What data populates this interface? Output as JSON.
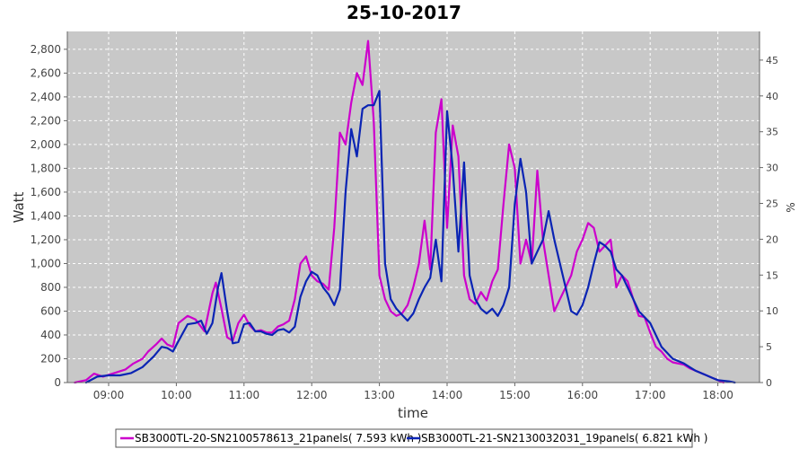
{
  "chart_data": {
    "type": "line",
    "title": "25-10-2017",
    "xlabel": "time",
    "ylabel": "Watt",
    "y2label": "%",
    "x_ticks": [
      "09:00",
      "10:00",
      "11:00",
      "12:00",
      "13:00",
      "14:00",
      "15:00",
      "16:00",
      "17:00",
      "18:00"
    ],
    "ylim": [
      0,
      2950
    ],
    "y_ticks": [
      "0",
      "200",
      "400",
      "600",
      "800",
      "1,000",
      "1,200",
      "1,400",
      "1,600",
      "1,800",
      "2,000",
      "2,200",
      "2,400",
      "2,600",
      "2,800"
    ],
    "y2lim": [
      0,
      49
    ],
    "y2_ticks": [
      "0",
      "5",
      "10",
      "15",
      "20",
      "25",
      "30",
      "35",
      "40",
      "45"
    ],
    "grid": true,
    "legend_position": "bottom",
    "colors": {
      "plot_bg": "#c8c8c8",
      "grid": "#ffffff"
    },
    "series": [
      {
        "name": "SB3000TL-20-SN2100578613_21panels( 7.593 kWh )",
        "color": "#cc00cc",
        "points": [
          [
            "08:30",
            0
          ],
          [
            "08:40",
            20
          ],
          [
            "08:47",
            75
          ],
          [
            "08:55",
            50
          ],
          [
            "09:05",
            80
          ],
          [
            "09:15",
            110
          ],
          [
            "09:22",
            160
          ],
          [
            "09:30",
            200
          ],
          [
            "09:35",
            260
          ],
          [
            "09:42",
            320
          ],
          [
            "09:47",
            370
          ],
          [
            "09:52",
            320
          ],
          [
            "09:57",
            300
          ],
          [
            "10:02",
            500
          ],
          [
            "10:10",
            560
          ],
          [
            "10:17",
            530
          ],
          [
            "10:25",
            430
          ],
          [
            "10:32",
            750
          ],
          [
            "10:35",
            840
          ],
          [
            "10:40",
            620
          ],
          [
            "10:45",
            380
          ],
          [
            "10:50",
            350
          ],
          [
            "10:55",
            500
          ],
          [
            "11:00",
            570
          ],
          [
            "11:05",
            480
          ],
          [
            "11:10",
            430
          ],
          [
            "11:15",
            440
          ],
          [
            "11:20",
            420
          ],
          [
            "11:25",
            420
          ],
          [
            "11:30",
            470
          ],
          [
            "11:35",
            490
          ],
          [
            "11:40",
            520
          ],
          [
            "11:45",
            700
          ],
          [
            "11:50",
            1000
          ],
          [
            "11:55",
            1060
          ],
          [
            "12:00",
            900
          ],
          [
            "12:05",
            850
          ],
          [
            "12:10",
            830
          ],
          [
            "12:15",
            780
          ],
          [
            "12:20",
            1300
          ],
          [
            "12:25",
            2100
          ],
          [
            "12:30",
            2000
          ],
          [
            "12:35",
            2350
          ],
          [
            "12:40",
            2600
          ],
          [
            "12:45",
            2500
          ],
          [
            "12:50",
            2870
          ],
          [
            "12:55",
            2200
          ],
          [
            "13:00",
            900
          ],
          [
            "13:05",
            700
          ],
          [
            "13:10",
            600
          ],
          [
            "13:15",
            560
          ],
          [
            "13:20",
            580
          ],
          [
            "13:25",
            650
          ],
          [
            "13:30",
            800
          ],
          [
            "13:35",
            1000
          ],
          [
            "13:40",
            1360
          ],
          [
            "13:45",
            950
          ],
          [
            "13:50",
            2100
          ],
          [
            "13:55",
            2380
          ],
          [
            "14:00",
            1300
          ],
          [
            "14:05",
            2160
          ],
          [
            "14:10",
            1900
          ],
          [
            "14:15",
            900
          ],
          [
            "14:20",
            700
          ],
          [
            "14:25",
            660
          ],
          [
            "14:30",
            760
          ],
          [
            "14:35",
            690
          ],
          [
            "14:40",
            850
          ],
          [
            "14:45",
            950
          ],
          [
            "14:50",
            1500
          ],
          [
            "14:55",
            2000
          ],
          [
            "15:00",
            1800
          ],
          [
            "15:05",
            1000
          ],
          [
            "15:10",
            1200
          ],
          [
            "15:15",
            1000
          ],
          [
            "15:20",
            1780
          ],
          [
            "15:25",
            1200
          ],
          [
            "15:30",
            900
          ],
          [
            "15:35",
            600
          ],
          [
            "15:40",
            700
          ],
          [
            "15:45",
            800
          ],
          [
            "15:50",
            900
          ],
          [
            "15:55",
            1100
          ],
          [
            "16:00",
            1200
          ],
          [
            "16:05",
            1340
          ],
          [
            "16:10",
            1300
          ],
          [
            "16:15",
            1100
          ],
          [
            "16:20",
            1150
          ],
          [
            "16:25",
            1200
          ],
          [
            "16:30",
            800
          ],
          [
            "16:35",
            900
          ],
          [
            "16:40",
            850
          ],
          [
            "16:45",
            700
          ],
          [
            "16:50",
            560
          ],
          [
            "16:55",
            550
          ],
          [
            "17:00",
            420
          ],
          [
            "17:05",
            300
          ],
          [
            "17:10",
            260
          ],
          [
            "17:15",
            200
          ],
          [
            "17:20",
            170
          ],
          [
            "17:25",
            160
          ],
          [
            "17:30",
            150
          ],
          [
            "17:35",
            120
          ],
          [
            "17:40",
            100
          ],
          [
            "17:45",
            80
          ],
          [
            "17:50",
            60
          ],
          [
            "17:55",
            40
          ],
          [
            "18:00",
            20
          ],
          [
            "18:05",
            0
          ]
        ]
      },
      {
        "name": "SB3000TL-21-SN2130032031_19panels( 6.821 kWh )",
        "color": "#0a24b4",
        "points": [
          [
            "08:40",
            0
          ],
          [
            "08:50",
            50
          ],
          [
            "09:00",
            60
          ],
          [
            "09:10",
            60
          ],
          [
            "09:20",
            80
          ],
          [
            "09:30",
            130
          ],
          [
            "09:40",
            220
          ],
          [
            "09:47",
            300
          ],
          [
            "09:52",
            290
          ],
          [
            "09:57",
            260
          ],
          [
            "10:02",
            350
          ],
          [
            "10:10",
            490
          ],
          [
            "10:17",
            500
          ],
          [
            "10:22",
            520
          ],
          [
            "10:27",
            410
          ],
          [
            "10:32",
            500
          ],
          [
            "10:37",
            800
          ],
          [
            "10:40",
            920
          ],
          [
            "10:45",
            600
          ],
          [
            "10:50",
            330
          ],
          [
            "10:55",
            340
          ],
          [
            "11:00",
            490
          ],
          [
            "11:05",
            500
          ],
          [
            "11:10",
            430
          ],
          [
            "11:15",
            430
          ],
          [
            "11:20",
            410
          ],
          [
            "11:25",
            400
          ],
          [
            "11:30",
            440
          ],
          [
            "11:35",
            450
          ],
          [
            "11:40",
            420
          ],
          [
            "11:45",
            470
          ],
          [
            "11:50",
            720
          ],
          [
            "11:55",
            850
          ],
          [
            "12:00",
            930
          ],
          [
            "12:05",
            900
          ],
          [
            "12:10",
            800
          ],
          [
            "12:15",
            740
          ],
          [
            "12:20",
            650
          ],
          [
            "12:25",
            780
          ],
          [
            "12:30",
            1600
          ],
          [
            "12:35",
            2130
          ],
          [
            "12:40",
            1900
          ],
          [
            "12:45",
            2300
          ],
          [
            "12:50",
            2330
          ],
          [
            "12:55",
            2330
          ],
          [
            "13:00",
            2450
          ],
          [
            "13:05",
            1000
          ],
          [
            "13:10",
            700
          ],
          [
            "13:15",
            620
          ],
          [
            "13:20",
            570
          ],
          [
            "13:25",
            520
          ],
          [
            "13:30",
            580
          ],
          [
            "13:35",
            700
          ],
          [
            "13:40",
            800
          ],
          [
            "13:45",
            880
          ],
          [
            "13:50",
            1200
          ],
          [
            "13:55",
            850
          ],
          [
            "14:00",
            2280
          ],
          [
            "14:05",
            1800
          ],
          [
            "14:10",
            1100
          ],
          [
            "14:15",
            1850
          ],
          [
            "14:20",
            900
          ],
          [
            "14:25",
            700
          ],
          [
            "14:30",
            620
          ],
          [
            "14:35",
            580
          ],
          [
            "14:40",
            620
          ],
          [
            "14:45",
            560
          ],
          [
            "14:50",
            650
          ],
          [
            "14:55",
            800
          ],
          [
            "15:00",
            1500
          ],
          [
            "15:05",
            1880
          ],
          [
            "15:10",
            1600
          ],
          [
            "15:15",
            1000
          ],
          [
            "15:20",
            1100
          ],
          [
            "15:25",
            1200
          ],
          [
            "15:30",
            1440
          ],
          [
            "15:35",
            1200
          ],
          [
            "15:40",
            1000
          ],
          [
            "15:45",
            800
          ],
          [
            "15:50",
            600
          ],
          [
            "15:55",
            570
          ],
          [
            "16:00",
            650
          ],
          [
            "16:05",
            800
          ],
          [
            "16:10",
            1000
          ],
          [
            "16:15",
            1180
          ],
          [
            "16:20",
            1150
          ],
          [
            "16:25",
            1100
          ],
          [
            "16:30",
            950
          ],
          [
            "16:35",
            900
          ],
          [
            "16:40",
            800
          ],
          [
            "16:45",
            700
          ],
          [
            "16:50",
            600
          ],
          [
            "16:55",
            550
          ],
          [
            "17:00",
            500
          ],
          [
            "17:05",
            400
          ],
          [
            "17:10",
            300
          ],
          [
            "17:15",
            250
          ],
          [
            "17:20",
            200
          ],
          [
            "17:25",
            180
          ],
          [
            "17:30",
            160
          ],
          [
            "17:35",
            130
          ],
          [
            "17:40",
            100
          ],
          [
            "17:45",
            80
          ],
          [
            "17:50",
            60
          ],
          [
            "17:55",
            40
          ],
          [
            "18:00",
            20
          ],
          [
            "18:10",
            10
          ],
          [
            "18:15",
            0
          ]
        ]
      }
    ]
  }
}
